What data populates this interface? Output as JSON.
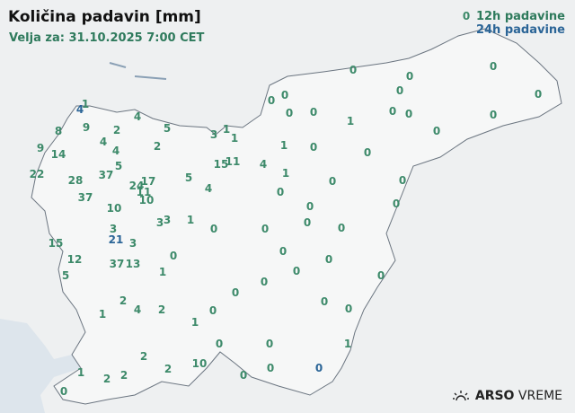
{
  "header": {
    "title": "Količina padavin [mm]",
    "valid": "Velja za: 31.10.2025 7:00 CET"
  },
  "legend": {
    "h12": "12h padavine",
    "h24": "24h padavine",
    "h12_color": "#3d8a6a",
    "h24_color": "#2b6597"
  },
  "logo": {
    "brand": "ARSO",
    "product": "VREME",
    "icon": "sun-icon"
  },
  "stations": [
    {
      "v": "1",
      "t": "12h"
    },
    {
      "v": "4",
      "t": "24h"
    },
    {
      "v": "4",
      "t": "12h"
    },
    {
      "v": "5",
      "t": "12h"
    },
    {
      "v": "2",
      "t": "12h"
    },
    {
      "v": "9",
      "t": "12h"
    },
    {
      "v": "8",
      "t": "12h"
    },
    {
      "v": "4",
      "t": "12h"
    },
    {
      "v": "2",
      "t": "12h"
    },
    {
      "v": "3",
      "t": "12h"
    },
    {
      "v": "1",
      "t": "12h"
    },
    {
      "v": "1",
      "t": "12h"
    },
    {
      "v": "9",
      "t": "12h"
    },
    {
      "v": "14",
      "t": "12h"
    },
    {
      "v": "4",
      "t": "12h"
    },
    {
      "v": "5",
      "t": "12h"
    },
    {
      "v": "37",
      "t": "12h"
    },
    {
      "v": "28",
      "t": "12h"
    },
    {
      "v": "22",
      "t": "12h"
    },
    {
      "v": "37",
      "t": "12h"
    },
    {
      "v": "17",
      "t": "12h"
    },
    {
      "v": "24",
      "t": "12h"
    },
    {
      "v": "11",
      "t": "12h"
    },
    {
      "v": "10",
      "t": "12h"
    },
    {
      "v": "10",
      "t": "12h"
    },
    {
      "v": "5",
      "t": "12h"
    },
    {
      "v": "4",
      "t": "12h"
    },
    {
      "v": "15",
      "t": "12h"
    },
    {
      "v": "11",
      "t": "12h"
    },
    {
      "v": "4",
      "t": "12h"
    },
    {
      "v": "3",
      "t": "12h"
    },
    {
      "v": "3",
      "t": "12h"
    },
    {
      "v": "1",
      "t": "12h"
    },
    {
      "v": "0",
      "t": "12h"
    },
    {
      "v": "3",
      "t": "12h"
    },
    {
      "v": "21",
      "t": "24h"
    },
    {
      "v": "3",
      "t": "12h"
    },
    {
      "v": "15",
      "t": "12h"
    },
    {
      "v": "12",
      "t": "12h"
    },
    {
      "v": "5",
      "t": "12h"
    },
    {
      "v": "37",
      "t": "12h"
    },
    {
      "v": "13",
      "t": "12h"
    },
    {
      "v": "0",
      "t": "12h"
    },
    {
      "v": "1",
      "t": "12h"
    },
    {
      "v": "2",
      "t": "12h"
    },
    {
      "v": "4",
      "t": "12h"
    },
    {
      "v": "2",
      "t": "12h"
    },
    {
      "v": "1",
      "t": "12h"
    },
    {
      "v": "1",
      "t": "12h"
    },
    {
      "v": "0",
      "t": "12h"
    },
    {
      "v": "0",
      "t": "12h"
    },
    {
      "v": "0",
      "t": "12h"
    },
    {
      "v": "2",
      "t": "12h"
    },
    {
      "v": "2",
      "t": "12h"
    },
    {
      "v": "10",
      "t": "12h"
    },
    {
      "v": "0",
      "t": "12h"
    },
    {
      "v": "1",
      "t": "12h"
    },
    {
      "v": "2",
      "t": "12h"
    },
    {
      "v": "2",
      "t": "12h"
    },
    {
      "v": "0",
      "t": "12h"
    },
    {
      "v": "0",
      "t": "12h"
    },
    {
      "v": "0",
      "t": "24h"
    },
    {
      "v": "1",
      "t": "12h"
    },
    {
      "v": "0",
      "t": "12h"
    },
    {
      "v": "0",
      "t": "12h"
    },
    {
      "v": "0",
      "t": "12h"
    },
    {
      "v": "0",
      "t": "12h"
    },
    {
      "v": "0",
      "t": "12h"
    },
    {
      "v": "0",
      "t": "12h"
    },
    {
      "v": "0",
      "t": "12h"
    },
    {
      "v": "0",
      "t": "12h"
    },
    {
      "v": "0",
      "t": "12h"
    },
    {
      "v": "0",
      "t": "12h"
    },
    {
      "v": "0",
      "t": "12h"
    },
    {
      "v": "0",
      "t": "12h"
    },
    {
      "v": "0",
      "t": "12h"
    },
    {
      "v": "1",
      "t": "12h"
    },
    {
      "v": "1",
      "t": "12h"
    },
    {
      "v": "0",
      "t": "12h"
    },
    {
      "v": "0",
      "t": "12h"
    },
    {
      "v": "0",
      "t": "12h"
    },
    {
      "v": "0",
      "t": "12h"
    },
    {
      "v": "0",
      "t": "12h"
    },
    {
      "v": "0",
      "t": "12h"
    },
    {
      "v": "1",
      "t": "12h"
    },
    {
      "v": "0",
      "t": "12h"
    },
    {
      "v": "0",
      "t": "12h"
    },
    {
      "v": "0",
      "t": "12h"
    },
    {
      "v": "0",
      "t": "12h"
    },
    {
      "v": "0",
      "t": "12h"
    },
    {
      "v": "0",
      "t": "12h"
    },
    {
      "v": "0",
      "t": "12h"
    },
    {
      "v": "0",
      "t": "12h"
    },
    {
      "v": "0",
      "t": "12h"
    },
    {
      "v": "0",
      "t": "12h"
    },
    {
      "v": "0",
      "t": "12h"
    },
    {
      "v": "0",
      "t": "12h"
    },
    {
      "v": "0",
      "t": "12h"
    }
  ]
}
